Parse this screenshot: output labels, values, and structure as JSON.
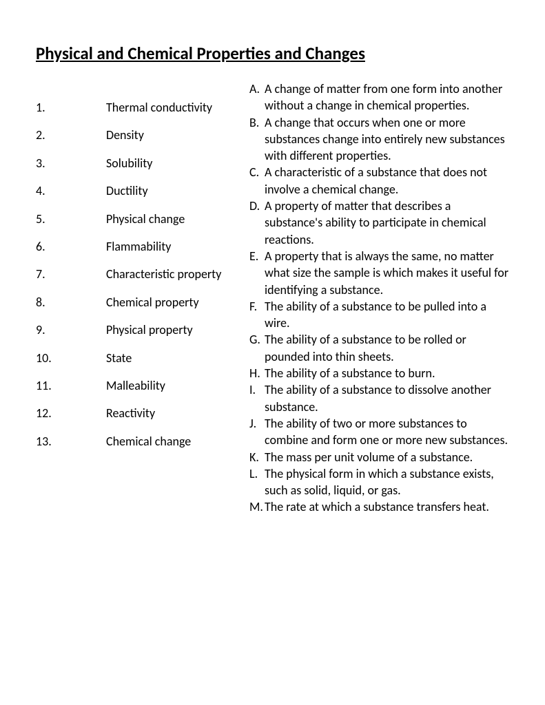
{
  "title": "Physical and Chemical Properties and Changes",
  "terms": [
    {
      "num": "1.",
      "text": "Thermal conductivity"
    },
    {
      "num": "2.",
      "text": "Density"
    },
    {
      "num": "3.",
      "text": "Solubility"
    },
    {
      "num": "4.",
      "text": "Ductility"
    },
    {
      "num": "5.",
      "text": "Physical change"
    },
    {
      "num": "6.",
      "text": "Flammability"
    },
    {
      "num": "7.",
      "text": "Characteristic property"
    },
    {
      "num": "8.",
      "text": "Chemical property"
    },
    {
      "num": "9.",
      "text": "Physical property"
    },
    {
      "num": "10.",
      "text": "State"
    },
    {
      "num": "11.",
      "text": "Malleability"
    },
    {
      "num": "12.",
      "text": "Reactivity"
    },
    {
      "num": "13.",
      "text": "Chemical change"
    }
  ],
  "definitions": [
    {
      "letter": "A.",
      "text": "A change of matter from one form into another without a change in chemical properties."
    },
    {
      "letter": "B.",
      "text": "A change that occurs when one or more substances change into entirely new substances with different properties."
    },
    {
      "letter": "C.",
      "text": "A characteristic of a substance that does not involve a chemical change."
    },
    {
      "letter": "D.",
      "text": "A property of matter that describes a substance's ability to participate in chemical reactions."
    },
    {
      "letter": "E.",
      "text": "A property that is always the same, no matter what size the sample is which makes it useful for identifying a substance."
    },
    {
      "letter": "F.",
      "text": "The ability of a substance to be pulled into a wire."
    },
    {
      "letter": "G.",
      "text": "The ability of a substance to be rolled or pounded into thin sheets."
    },
    {
      "letter": "H.",
      "text": "The ability of a substance to burn."
    },
    {
      "letter": "I.",
      "text": "The ability of a substance to dissolve another substance."
    },
    {
      "letter": "J.",
      "text": "The ability of two or more substances to combine and form one or more new substances."
    },
    {
      "letter": "K.",
      "text": "The mass per unit volume of a substance."
    },
    {
      "letter": "L.",
      "text": "The physical form in which a substance exists, such as solid, liquid, or gas."
    },
    {
      "letter": "M.",
      "text": "The rate at which a substance transfers heat."
    }
  ],
  "colors": {
    "background": "#ffffff",
    "text": "#000000"
  },
  "typography": {
    "title_fontsize": 25,
    "body_fontsize": 18,
    "font_family": "Calibri"
  }
}
